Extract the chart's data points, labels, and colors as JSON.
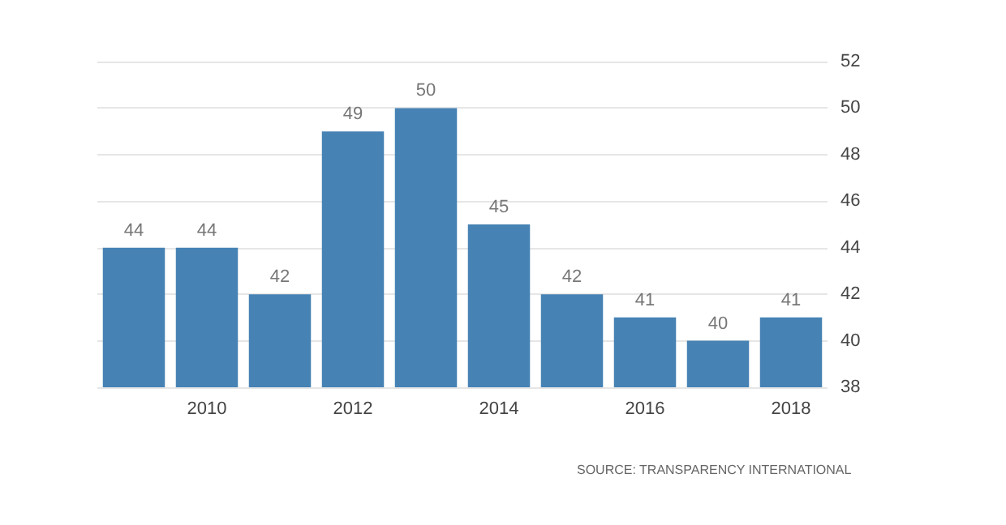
{
  "chart_data": {
    "type": "bar",
    "categories": [
      null,
      "2010",
      null,
      "2012",
      null,
      "2014",
      null,
      "2016",
      null,
      "2018"
    ],
    "values": [
      44,
      44,
      42,
      49,
      50,
      45,
      42,
      41,
      40,
      41
    ],
    "color": "#4682b4",
    "ylim": [
      38,
      52
    ],
    "yticks": [
      38,
      40,
      42,
      44,
      46,
      48,
      50,
      52
    ],
    "grid": "y",
    "data_labels": true,
    "annotations": [
      "SOURCE: TRANSPARENCY INTERNATIONAL"
    ]
  }
}
